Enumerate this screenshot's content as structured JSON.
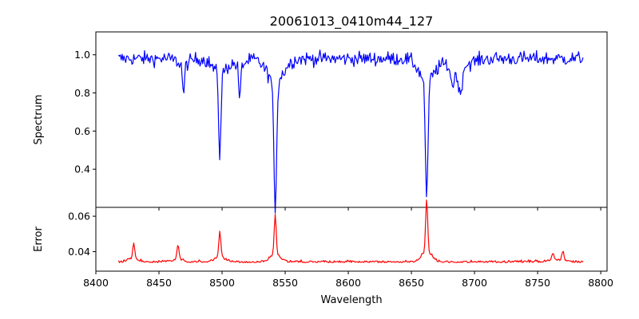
{
  "chart_data": {
    "type": "line",
    "title": "20061013_0410m44_127",
    "xlabel": "Wavelength",
    "xlim": [
      8400,
      8805
    ],
    "xticks": [
      8400,
      8450,
      8500,
      8550,
      8600,
      8650,
      8700,
      8750,
      8800
    ],
    "grid": false,
    "legend": "none",
    "x_range": [
      8418,
      8786
    ],
    "panels": [
      {
        "name": "spectrum",
        "ylabel": "Spectrum",
        "ylim": [
          0.2,
          1.12
        ],
        "yticks": [
          0.4,
          0.6,
          0.8,
          1.0
        ],
        "tick_format": 1,
        "color": "#0000ff",
        "series": [
          {
            "values": {
              "baseline": 0.98,
              "noise": 0.035,
              "lines": [
                {
                  "center": 8498.2,
                  "depth": 0.43,
                  "width": 0.9
                },
                {
                  "center": 8542.1,
                  "depth": 0.66,
                  "width": 1.1
                },
                {
                  "center": 8662.1,
                  "depth": 0.63,
                  "width": 1.0
                },
                {
                  "center": 8469.5,
                  "depth": 0.16,
                  "width": 0.8
                },
                {
                  "center": 8514.0,
                  "depth": 0.18,
                  "width": 0.8
                },
                {
                  "center": 8688.6,
                  "depth": 0.15,
                  "width": 1.5
                },
                {
                  "center": 8682.7,
                  "depth": 0.1,
                  "width": 1.5
                }
              ]
            },
            "points": []
          }
        ]
      },
      {
        "name": "error",
        "ylabel": "Error",
        "ylim": [
          0.029,
          0.065
        ],
        "yticks": [
          0.04,
          0.06
        ],
        "tick_format": 2,
        "color": "#ff0000",
        "series": [
          {
            "values": {
              "baseline": 0.0338,
              "noise": 0.0012,
              "peaks": [
                {
                  "center": 8430.0,
                  "height": 0.009
                },
                {
                  "center": 8465.0,
                  "height": 0.008
                },
                {
                  "center": 8498.2,
                  "height": 0.014
                },
                {
                  "center": 8542.1,
                  "height": 0.022
                },
                {
                  "center": 8662.1,
                  "height": 0.029
                },
                {
                  "center": 8762.0,
                  "height": 0.004
                },
                {
                  "center": 8770.0,
                  "height": 0.005
                }
              ]
            },
            "points": []
          }
        ]
      }
    ]
  }
}
